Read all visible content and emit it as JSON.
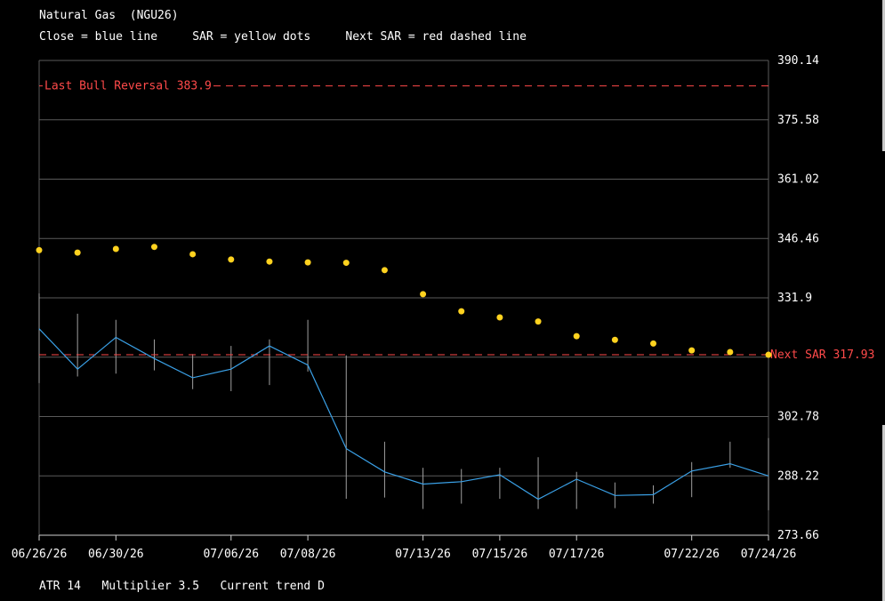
{
  "header": {
    "title": "Natural Gas  (NGU26)",
    "legend_close": "Close = blue line",
    "legend_sar": "SAR = yellow dots",
    "legend_next": "Next SAR = red dashed line"
  },
  "footer": {
    "atr": "ATR 14",
    "multiplier": "Multiplier 3.5",
    "trend": "Current trend D"
  },
  "colors": {
    "background": "#000000",
    "grid": "#5a5a5a",
    "close_line": "#3aa0e6",
    "sar_dots": "#ffd21f",
    "dashed_lines": "#ff4a4a",
    "range_bars": "#a0a0a0",
    "text": "#ffffff"
  },
  "chart_data": {
    "type": "line",
    "x": [
      "06/26/26",
      "06/29/26",
      "06/30/26",
      "07/01/26",
      "07/02/26",
      "07/06/26",
      "07/07/26",
      "07/08/26",
      "07/09/26",
      "07/10/26",
      "07/13/26",
      "07/14/26",
      "07/15/26",
      "07/16/26",
      "07/17/26",
      "07/20/26",
      "07/21/26",
      "07/22/26",
      "07/23/26",
      "07/24/26"
    ],
    "x_tick_labels": [
      "06/26/26",
      "06/30/26",
      "07/06/26",
      "07/08/26",
      "07/13/26",
      "07/15/26",
      "07/17/26",
      "07/22/26",
      "07/24/26"
    ],
    "y_ticks": [
      273.66,
      288.22,
      302.78,
      317.34,
      331.9,
      346.46,
      361.02,
      375.58,
      390.14
    ],
    "y_tick_labels": [
      "273.66",
      "288.22",
      "302.78",
      "",
      "331.9",
      "346.46",
      "361.02",
      "375.58",
      "390.14"
    ],
    "ylim": [
      273.66,
      390.14
    ],
    "grid": true,
    "series": [
      {
        "name": "Close",
        "style": "line",
        "values": [
          324.3,
          314.4,
          322.2,
          317.0,
          312.3,
          314.4,
          320.1,
          315.4,
          294.9,
          289.2,
          286.2,
          286.8,
          288.5,
          282.5,
          287.4,
          283.4,
          283.6,
          289.4,
          291.2,
          288.2
        ]
      },
      {
        "name": "SAR",
        "style": "dots",
        "values": [
          343.6,
          343.0,
          343.9,
          344.4,
          342.6,
          341.3,
          340.8,
          340.6,
          340.5,
          338.7,
          332.8,
          328.6,
          327.1,
          326.1,
          322.5,
          321.6,
          320.7,
          319.0,
          318.6,
          317.93
        ]
      }
    ],
    "range_bars": [
      [
        333.0,
        311.0
      ],
      [
        328.0,
        312.6
      ],
      [
        326.5,
        313.3
      ],
      [
        321.7,
        314.1
      ],
      [
        318.1,
        309.5
      ],
      [
        320.1,
        309.0
      ],
      [
        321.7,
        310.5
      ],
      [
        326.5,
        313.8
      ],
      [
        317.8,
        282.6
      ],
      [
        296.6,
        282.9
      ],
      [
        290.2,
        280.1
      ],
      [
        289.9,
        281.4
      ],
      [
        290.2,
        282.6
      ],
      [
        292.8,
        280.1
      ],
      [
        289.2,
        280.1
      ],
      [
        286.6,
        280.3
      ],
      [
        285.9,
        281.4
      ],
      [
        291.6,
        283.0
      ],
      [
        296.6,
        290.2
      ],
      [
        297.5,
        279.8
      ]
    ],
    "next_sar": {
      "value": 317.93,
      "label": "Next SAR 317.93"
    },
    "last_reversal": {
      "value": 383.9,
      "label": "Last Bull Reversal 383.9"
    }
  }
}
